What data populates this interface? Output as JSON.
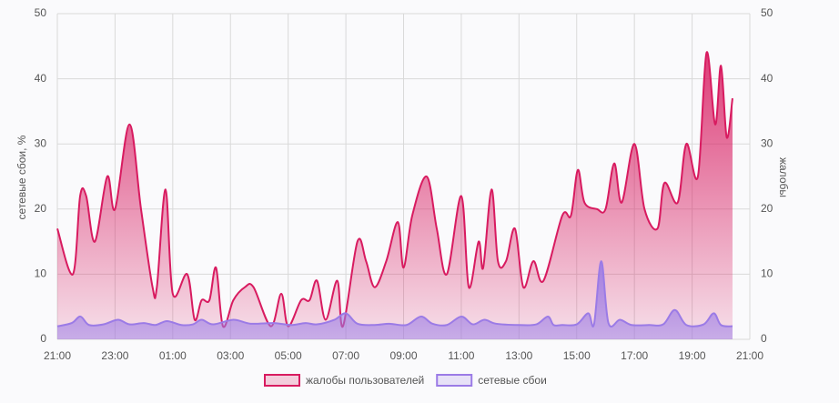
{
  "chart_data": {
    "type": "area",
    "y_label": "сетевые сбои, %",
    "y2_label": "жалобы",
    "xlim": [
      0,
      24
    ],
    "xticks": [
      {
        "value": 0,
        "label": "21:00"
      },
      {
        "value": 2,
        "label": "23:00"
      },
      {
        "value": 4,
        "label": "01:00"
      },
      {
        "value": 6,
        "label": "03:00"
      },
      {
        "value": 8,
        "label": "05:00"
      },
      {
        "value": 10,
        "label": "07:00"
      },
      {
        "value": 12,
        "label": "09:00"
      },
      {
        "value": 14,
        "label": "11:00"
      },
      {
        "value": 16,
        "label": "13:00"
      },
      {
        "value": 18,
        "label": "15:00"
      },
      {
        "value": 20,
        "label": "17:00"
      },
      {
        "value": 22,
        "label": "19:00"
      },
      {
        "value": 24,
        "label": "21:00"
      }
    ],
    "ylim": [
      0,
      50
    ],
    "yticks": [
      0,
      10,
      20,
      30,
      40,
      50
    ],
    "y2lim": [
      0,
      50
    ],
    "y2ticks": [
      0,
      10,
      20,
      30,
      40,
      50
    ],
    "grid": true,
    "legend": "bottom",
    "series": [
      {
        "name": "жалобы пользователей",
        "color": "#d81b60",
        "axis": "y2",
        "x": [
          0,
          0.54,
          0.79,
          1.0,
          1.3,
          1.73,
          2.0,
          2.5,
          2.9,
          3.3,
          3.45,
          3.75,
          4.0,
          4.5,
          4.76,
          5.0,
          5.27,
          5.5,
          5.74,
          6.1,
          6.5,
          6.8,
          7.4,
          7.76,
          8.0,
          8.45,
          8.74,
          9.0,
          9.3,
          9.7,
          9.9,
          10.4,
          10.7,
          11.0,
          11.4,
          11.8,
          12.0,
          12.3,
          12.8,
          13.15,
          13.5,
          14.0,
          14.26,
          14.6,
          14.76,
          15.05,
          15.27,
          15.55,
          15.86,
          16.15,
          16.5,
          16.85,
          17.5,
          17.8,
          18.04,
          18.27,
          18.7,
          19.0,
          19.3,
          19.56,
          20.0,
          20.35,
          20.8,
          21.04,
          21.5,
          21.8,
          22.2,
          22.5,
          22.8,
          23.0,
          23.2,
          23.4
        ],
        "values": [
          17,
          10,
          22,
          22,
          15,
          25,
          20,
          33,
          20,
          8,
          8,
          23,
          7,
          10,
          3,
          6,
          6,
          11,
          2,
          6,
          8,
          8,
          2,
          7,
          2,
          6,
          6,
          9,
          3,
          9,
          2,
          15,
          12,
          8,
          12,
          18,
          11,
          19,
          25,
          17,
          10,
          22,
          8,
          15,
          11,
          23,
          12,
          12,
          17,
          8,
          12,
          9,
          19,
          19,
          26,
          21,
          20,
          20,
          27,
          21,
          30,
          20,
          17,
          24,
          21,
          30,
          25,
          44,
          33,
          42,
          31,
          37
        ]
      },
      {
        "name": "сетевые сбои",
        "color": "#9b7be6",
        "axis": "y",
        "x": [
          0,
          0.5,
          0.8,
          1.1,
          1.6,
          2.1,
          2.5,
          3.0,
          3.4,
          3.8,
          4.3,
          4.7,
          5.0,
          5.4,
          6.1,
          6.7,
          7.5,
          8.1,
          8.6,
          9.0,
          9.6,
          10.0,
          10.4,
          11.0,
          11.5,
          12.1,
          12.6,
          13.0,
          13.5,
          14.0,
          14.4,
          14.8,
          15.2,
          16.0,
          16.6,
          17.0,
          17.2,
          17.5,
          18.0,
          18.4,
          18.6,
          18.85,
          19.1,
          19.5,
          19.9,
          20.5,
          21.0,
          21.4,
          21.8,
          22.4,
          22.75,
          23.0,
          23.4
        ],
        "values": [
          2,
          2.5,
          3.5,
          2.2,
          2.3,
          3,
          2.3,
          2.5,
          2.2,
          2.8,
          2.2,
          2.3,
          3,
          2.3,
          3,
          2.4,
          2.5,
          2.2,
          2.5,
          2.3,
          3,
          4,
          2.4,
          2.2,
          2.4,
          2.2,
          3.5,
          2.4,
          2.2,
          3.5,
          2.3,
          3,
          2.4,
          2.2,
          2.3,
          3.5,
          2.2,
          2.2,
          2.3,
          4,
          2.3,
          12,
          2.5,
          3,
          2.2,
          2.2,
          2.3,
          4.5,
          2.2,
          2.3,
          4,
          2.2,
          2
        ]
      }
    ]
  }
}
